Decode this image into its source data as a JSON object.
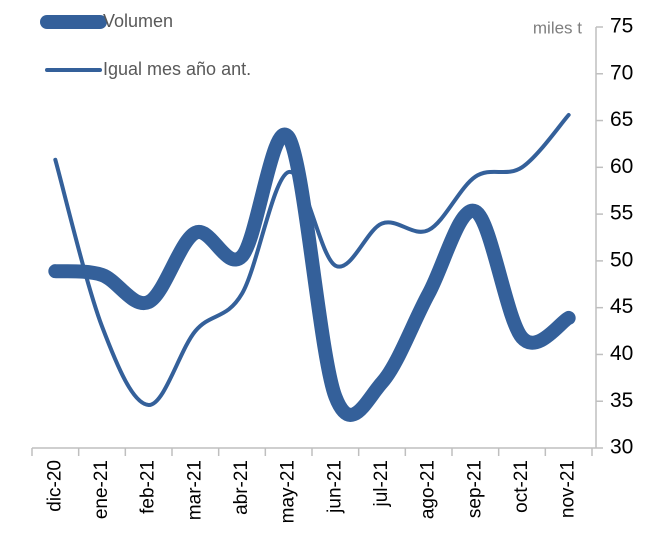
{
  "chart_data": {
    "type": "line",
    "y_axis_label": "miles t",
    "categories": [
      "dic-20",
      "ene-21",
      "feb-21",
      "mar-21",
      "abr-21",
      "may-21",
      "jun-21",
      "jul-21",
      "ago-21",
      "sep-21",
      "oct-21",
      "nov-21"
    ],
    "series": [
      {
        "name": "Volumen",
        "color": "#34609a",
        "values": [
          48.9,
          48.5,
          45.6,
          53,
          50.5,
          63.2,
          35.5,
          37,
          46.5,
          55.3,
          41.8,
          43.9
        ]
      },
      {
        "name": "Igual mes año ant.",
        "color": "#34609a",
        "values": [
          60.8,
          43,
          34.6,
          42.5,
          46.5,
          59.5,
          49.5,
          54,
          53.3,
          59,
          60,
          65.6
        ]
      }
    ],
    "ylim": [
      30,
      75
    ],
    "yticks": [
      30,
      35,
      40,
      45,
      50,
      55,
      60,
      65,
      70,
      75
    ],
    "y_axis_side": "right",
    "smooth": true,
    "legend": "top-left"
  }
}
